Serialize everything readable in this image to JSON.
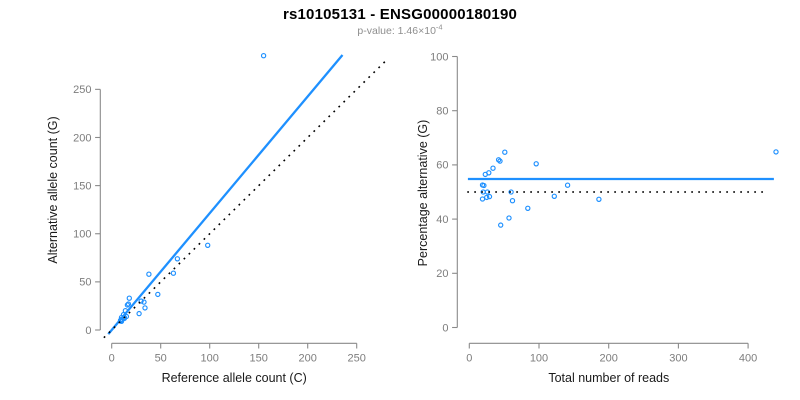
{
  "figure": {
    "title": "rs10105131 - ENSG00000180190",
    "subtitle_prefix": "p-value: 1.46×10",
    "subtitle_exponent": "-4"
  },
  "colors": {
    "series_blue": "#1E90FF",
    "reference_line_black": "#000000",
    "axis_line_gray": "#8A8A8A",
    "tick_label_gray": "#7D7D7D",
    "axis_title_dark": "#1A1A1A",
    "subtitle_gray": "#8E8E8E",
    "background": "#FFFFFF"
  },
  "chart_data": [
    {
      "type": "scatter",
      "name": "allele-counts-scatter",
      "xlabel": "Reference allele count (C)",
      "ylabel": "Alternative allele count (G)",
      "xlim": [
        0,
        250
      ],
      "ylim": [
        0,
        250
      ],
      "xticks": [
        0,
        50,
        100,
        150,
        200,
        250
      ],
      "yticks": [
        0,
        50,
        100,
        150,
        200,
        250
      ],
      "grid": false,
      "legend": null,
      "marker": "open-circle",
      "points": [
        [
          10,
          9
        ],
        [
          9,
          10
        ],
        [
          10,
          10
        ],
        [
          10,
          11
        ],
        [
          10,
          13
        ],
        [
          13,
          12
        ],
        [
          13,
          13
        ],
        [
          12,
          16
        ],
        [
          15,
          14
        ],
        [
          14,
          20
        ],
        [
          16,
          26
        ],
        [
          17,
          27
        ],
        [
          28,
          17
        ],
        [
          18,
          33
        ],
        [
          34,
          23
        ],
        [
          30,
          30
        ],
        [
          33,
          29
        ],
        [
          47,
          37
        ],
        [
          38,
          58
        ],
        [
          63,
          59
        ],
        [
          67,
          74
        ],
        [
          98,
          88
        ],
        [
          155,
          285
        ]
      ],
      "lines": [
        {
          "name": "fitted-ratio-line",
          "style": "solid",
          "color": "#1E90FF",
          "slope": 1.213,
          "intercept": 0,
          "x_range": [
            -3.5,
            235.5
          ]
        },
        {
          "name": "identity-line",
          "style": "dotted",
          "color": "#000000",
          "slope": 1,
          "intercept": 0,
          "x_range": [
            -8,
            282
          ]
        }
      ]
    },
    {
      "type": "scatter",
      "name": "percentage-vs-reads-scatter",
      "xlabel": "Total number of reads",
      "ylabel": "Percentage alternative (G)",
      "xlim": [
        0,
        400
      ],
      "ylim": [
        0,
        100
      ],
      "xticks": [
        0,
        100,
        200,
        300,
        400
      ],
      "yticks": [
        0,
        20,
        40,
        60,
        80,
        100
      ],
      "grid": false,
      "legend": null,
      "marker": "open-circle",
      "points": [
        [
          19,
          47.4
        ],
        [
          19,
          52.6
        ],
        [
          20,
          50
        ],
        [
          21,
          52.4
        ],
        [
          23,
          56.5
        ],
        [
          25,
          48
        ],
        [
          26,
          50
        ],
        [
          28,
          57.1
        ],
        [
          29,
          48.3
        ],
        [
          34,
          58.8
        ],
        [
          42,
          61.9
        ],
        [
          44,
          61.4
        ],
        [
          45,
          37.8
        ],
        [
          51,
          64.7
        ],
        [
          57,
          40.4
        ],
        [
          60,
          50
        ],
        [
          62,
          46.8
        ],
        [
          84,
          44
        ],
        [
          96,
          60.4
        ],
        [
          122,
          48.4
        ],
        [
          141,
          52.5
        ],
        [
          186,
          47.3
        ],
        [
          440,
          64.8
        ]
      ],
      "lines": [
        {
          "name": "mean-percentage-line",
          "style": "solid",
          "color": "#1E90FF",
          "y": 54.8,
          "x_range": [
            -2,
            437
          ]
        },
        {
          "name": "null-50-percent-line",
          "style": "dotted",
          "color": "#000000",
          "y": 50,
          "x_range": [
            -3,
            428
          ]
        }
      ]
    }
  ]
}
